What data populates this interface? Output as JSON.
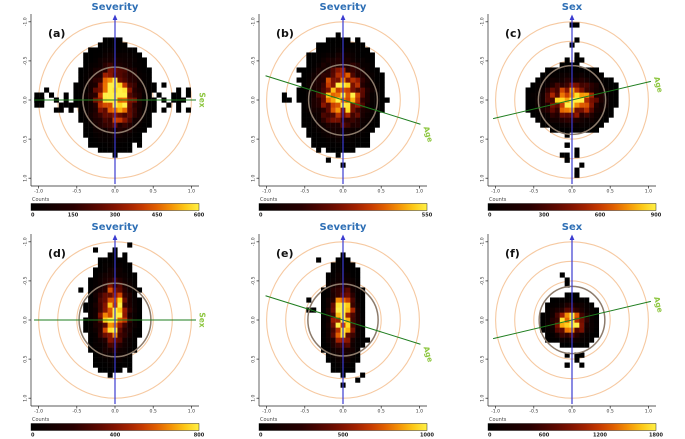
{
  "figure_title": "",
  "colors": {
    "background": "#ffffff",
    "title_blue": "#2e6fb5",
    "axis_line_blue": "#3b3bd0",
    "oblique_line_green": "#1e7d1e",
    "oblique_label_green": "#8dc63f",
    "grid_circle_peach": "#f6c9a1",
    "inner_circle_brown": "#8d7b6b",
    "axis_black": "#222222",
    "tick_text": "#333333",
    "panel_letter": "#111111"
  },
  "chart_data": {
    "type": "heatmap",
    "title": "",
    "description": "Six-panel 2D bin-count density maps on unit factor planes; concentric grid circles at radii 0.25/0.5/0.75/1.0, a vertical blue factor axis and an oblique green factor axis per panel, heat colormap colorbars labelled Counts.",
    "axis_range": [
      -1.0,
      1.0
    ],
    "x_tick_labels": [
      "-1.0",
      "-0.5",
      "0.0",
      "0.5",
      "1.0"
    ],
    "x_tick_values": [
      -1,
      -0.5,
      0,
      0.5,
      1
    ],
    "y_tick_labels": [
      "1.0",
      "0.5",
      "0.0",
      "-0.5",
      "-1.0"
    ],
    "y_tick_values": [
      1,
      0.5,
      0,
      -0.5,
      -1
    ],
    "grid_circle_radii": [
      0.25,
      0.5,
      0.75,
      1.0
    ],
    "counts_label": "Counts",
    "legend_position": "below-each-panel",
    "grid": "circular",
    "panels": [
      {
        "letter": "(a)",
        "vertical_axis_label": "Severity",
        "oblique_axis_label": "Sex",
        "oblique_angle_deg": 0,
        "oblique_label_rotation": 90,
        "colorbar_ticks": [
          "0",
          "150",
          "300",
          "450",
          "600"
        ],
        "colorbar_max": 600,
        "density": {
          "cx": 0.0,
          "cy": 0.04,
          "sx": 0.21,
          "sy": 0.3,
          "peak_count": 600
        },
        "inner_circle_radius": 0.42,
        "scatter": {
          "orient": "h",
          "count": 30,
          "reach": 1.03,
          "left_bar": true
        }
      },
      {
        "letter": "(b)",
        "vertical_axis_label": "Severity",
        "oblique_axis_label": "Age",
        "oblique_angle_deg": -17,
        "oblique_label_rotation": 73,
        "colorbar_ticks": [
          "0",
          "550"
        ],
        "colorbar_max": 550,
        "density": {
          "cx": -0.02,
          "cy": 0.06,
          "sx": 0.23,
          "sy": 0.3,
          "peak_count": 550
        },
        "inner_circle_radius": 0.45,
        "scatter": {
          "orient": "edge",
          "count": 14,
          "reach": 1.0,
          "left_bar": false
        }
      },
      {
        "letter": "(c)",
        "vertical_axis_label": "Sex",
        "oblique_axis_label": "Age",
        "oblique_angle_deg": 13,
        "oblique_label_rotation": 75,
        "colorbar_ticks": [
          "0",
          "300",
          "600",
          "900"
        ],
        "colorbar_max": 900,
        "density": {
          "cx": 0.0,
          "cy": 0.0,
          "sx": 0.25,
          "sy": 0.18,
          "peak_count": 900
        },
        "inner_circle_radius": 0.44,
        "scatter": {
          "orient": "v",
          "count": 26,
          "reach": 0.98,
          "left_bar": false
        }
      },
      {
        "letter": "(d)",
        "vertical_axis_label": "Severity",
        "oblique_axis_label": "Sex",
        "oblique_angle_deg": 0,
        "oblique_label_rotation": 90,
        "colorbar_ticks": [
          "0",
          "400",
          "800"
        ],
        "colorbar_max": 800,
        "density": {
          "cx": -0.02,
          "cy": 0.08,
          "sx": 0.15,
          "sy": 0.32,
          "peak_count": 800
        },
        "inner_circle_radius": 0.47,
        "scatter": {
          "orient": "edge",
          "count": 8,
          "reach": 1.0,
          "left_bar": false
        }
      },
      {
        "letter": "(e)",
        "vertical_axis_label": "Severity",
        "oblique_axis_label": "Age",
        "oblique_angle_deg": -17,
        "oblique_label_rotation": 73,
        "colorbar_ticks": [
          "0",
          "500",
          "1000"
        ],
        "colorbar_max": 1000,
        "density": {
          "cx": 0.0,
          "cy": 0.04,
          "sx": 0.12,
          "sy": 0.31,
          "peak_count": 1000
        },
        "inner_circle_radius": 0.46,
        "scatter": {
          "orient": "edge",
          "count": 8,
          "reach": 1.0,
          "left_bar": false
        }
      },
      {
        "letter": "(f)",
        "vertical_axis_label": "Sex",
        "oblique_axis_label": "Age",
        "oblique_angle_deg": 13,
        "oblique_label_rotation": 75,
        "colorbar_ticks": [
          "0",
          "600",
          "1200",
          "1800"
        ],
        "colorbar_max": 1800,
        "density": {
          "cx": -0.02,
          "cy": -0.02,
          "sx": 0.16,
          "sy": 0.14,
          "peak_count": 1800
        },
        "inner_circle_radius": 0.43,
        "scatter": {
          "orient": "v",
          "count": 12,
          "reach": 0.6,
          "left_bar": false
        }
      }
    ]
  }
}
